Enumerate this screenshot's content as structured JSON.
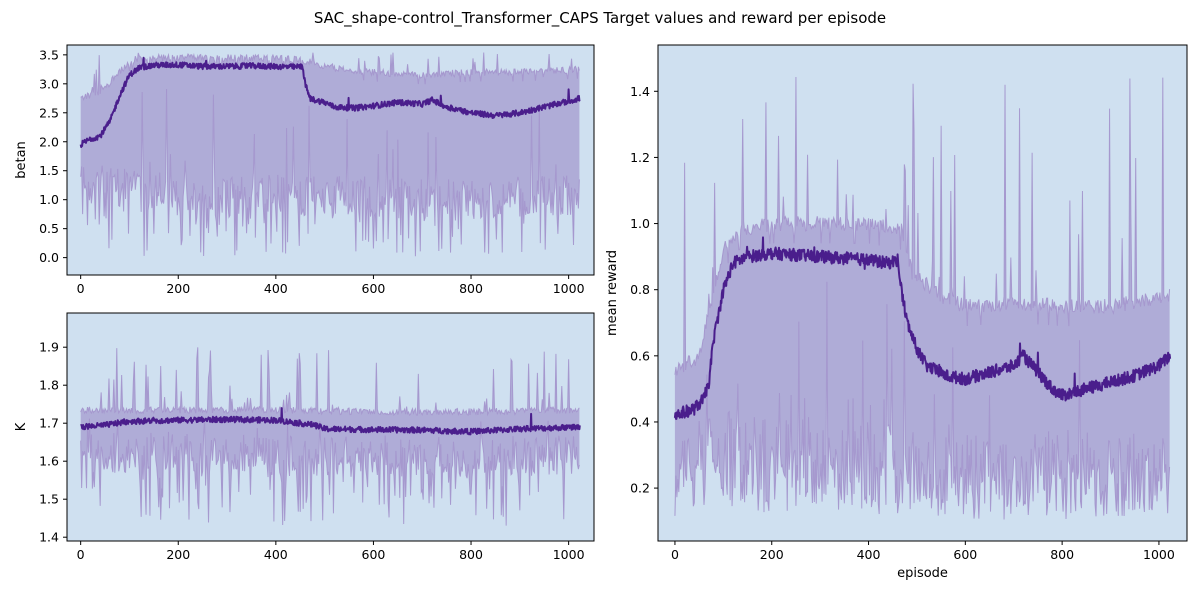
{
  "figure": {
    "title": "SAC_shape-control_Transformer_CAPS Target values and reward per episode"
  },
  "colors": {
    "axes_background": "#cfe0f0",
    "band_fill": "#a9a2d2",
    "band_edge": "#a394cc",
    "mean_line": "#4a1e8c"
  },
  "chart_data": [
    {
      "id": "betan",
      "type": "line",
      "title": "",
      "xlabel": "",
      "ylabel": "betan",
      "xlim": [
        -28,
        1052
      ],
      "ylim": [
        -0.3,
        3.67
      ],
      "xticks": [
        0,
        200,
        400,
        600,
        800,
        1000
      ],
      "yticks": [
        0.0,
        0.5,
        1.0,
        1.5,
        2.0,
        2.5,
        3.0,
        3.5
      ],
      "ytick_labels": [
        "0.0",
        "0.5",
        "1.0",
        "1.5",
        "2.0",
        "2.5",
        "3.0",
        "3.5"
      ],
      "episodes": [
        0,
        1023
      ],
      "mean": {
        "x": [
          0,
          20,
          40,
          60,
          80,
          100,
          120,
          150,
          200,
          250,
          300,
          350,
          400,
          440,
          455,
          460,
          470,
          480,
          500,
          520,
          560,
          600,
          650,
          700,
          720,
          750,
          800,
          850,
          900,
          950,
          1000,
          1023
        ],
        "y": [
          1.95,
          2.05,
          2.1,
          2.35,
          2.8,
          3.15,
          3.28,
          3.32,
          3.33,
          3.3,
          3.3,
          3.31,
          3.3,
          3.29,
          3.3,
          3.0,
          2.75,
          2.72,
          2.68,
          2.6,
          2.58,
          2.62,
          2.68,
          2.65,
          2.72,
          2.6,
          2.5,
          2.45,
          2.5,
          2.6,
          2.7,
          2.75
        ]
      },
      "upper": {
        "x": [
          0,
          40,
          80,
          100,
          120,
          200,
          300,
          400,
          460,
          500,
          600,
          700,
          800,
          900,
          1023
        ],
        "y": [
          2.75,
          2.85,
          3.2,
          3.38,
          3.45,
          3.45,
          3.45,
          3.45,
          3.4,
          3.3,
          3.2,
          3.15,
          3.2,
          3.2,
          3.25
        ]
      },
      "lower": {
        "x": [
          0,
          100,
          200,
          300,
          400,
          500,
          600,
          700,
          800,
          900,
          1023
        ],
        "y": [
          1.3,
          1.2,
          1.1,
          1.05,
          1.1,
          1.05,
          1.05,
          1.0,
          1.0,
          1.05,
          1.1
        ]
      },
      "noise_range": [
        0.0,
        3.45
      ],
      "noise_top_range": [
        2.7,
        3.55
      ]
    },
    {
      "id": "K",
      "type": "line",
      "title": "",
      "xlabel": "",
      "ylabel": "K",
      "xlim": [
        -28,
        1052
      ],
      "ylim": [
        1.39,
        1.99
      ],
      "xticks": [
        0,
        200,
        400,
        600,
        800,
        1000
      ],
      "yticks": [
        1.4,
        1.5,
        1.6,
        1.7,
        1.8,
        1.9
      ],
      "ytick_labels": [
        "1.4",
        "1.5",
        "1.6",
        "1.7",
        "1.8",
        "1.9"
      ],
      "episodes": [
        0,
        1023
      ],
      "mean": {
        "x": [
          0,
          50,
          100,
          200,
          300,
          400,
          480,
          500,
          600,
          700,
          800,
          900,
          1023
        ],
        "y": [
          1.69,
          1.695,
          1.705,
          1.708,
          1.71,
          1.708,
          1.695,
          1.685,
          1.683,
          1.682,
          1.678,
          1.685,
          1.69
        ]
      },
      "upper": {
        "x": [
          0,
          200,
          400,
          600,
          800,
          1023
        ],
        "y": [
          1.735,
          1.735,
          1.735,
          1.73,
          1.73,
          1.735
        ]
      },
      "lower": {
        "x": [
          0,
          200,
          400,
          600,
          800,
          1023
        ],
        "y": [
          1.62,
          1.62,
          1.615,
          1.61,
          1.61,
          1.615
        ]
      },
      "noise_range": [
        1.43,
        1.96
      ],
      "noise_top_range": [
        1.72,
        1.9
      ]
    },
    {
      "id": "reward",
      "type": "line",
      "title": "",
      "xlabel": "episode",
      "ylabel": "mean reward",
      "xlim": [
        -35,
        1058
      ],
      "ylim": [
        0.04,
        1.54
      ],
      "xticks": [
        0,
        200,
        400,
        600,
        800,
        1000
      ],
      "yticks": [
        0.2,
        0.4,
        0.6,
        0.8,
        1.0,
        1.2,
        1.4
      ],
      "ytick_labels": [
        "0.2",
        "0.4",
        "0.6",
        "0.8",
        "1.0",
        "1.2",
        "1.4"
      ],
      "episodes": [
        0,
        1023
      ],
      "mean": {
        "x": [
          0,
          20,
          40,
          60,
          70,
          80,
          100,
          120,
          150,
          200,
          300,
          400,
          440,
          460,
          470,
          480,
          500,
          520,
          560,
          600,
          650,
          700,
          720,
          750,
          780,
          800,
          850,
          900,
          950,
          1000,
          1023
        ],
        "y": [
          0.42,
          0.43,
          0.44,
          0.47,
          0.52,
          0.65,
          0.8,
          0.88,
          0.9,
          0.91,
          0.9,
          0.89,
          0.88,
          0.89,
          0.78,
          0.7,
          0.62,
          0.57,
          0.54,
          0.53,
          0.55,
          0.57,
          0.6,
          0.55,
          0.5,
          0.48,
          0.5,
          0.52,
          0.54,
          0.57,
          0.6
        ]
      },
      "upper": {
        "x": [
          0,
          50,
          80,
          100,
          130,
          200,
          300,
          400,
          470,
          490,
          550,
          600,
          700,
          800,
          900,
          1023
        ],
        "y": [
          0.55,
          0.6,
          0.8,
          0.92,
          0.98,
          1.0,
          1.0,
          1.0,
          0.98,
          0.85,
          0.78,
          0.75,
          0.76,
          0.75,
          0.75,
          0.78
        ]
      },
      "lower": {
        "x": [
          0,
          100,
          200,
          300,
          400,
          500,
          600,
          700,
          800,
          900,
          1023
        ],
        "y": [
          0.25,
          0.3,
          0.28,
          0.28,
          0.27,
          0.25,
          0.24,
          0.24,
          0.24,
          0.25,
          0.25
        ]
      },
      "noise_range": [
        0.12,
        1.3
      ],
      "noise_top_range": [
        0.5,
        1.45
      ]
    }
  ]
}
